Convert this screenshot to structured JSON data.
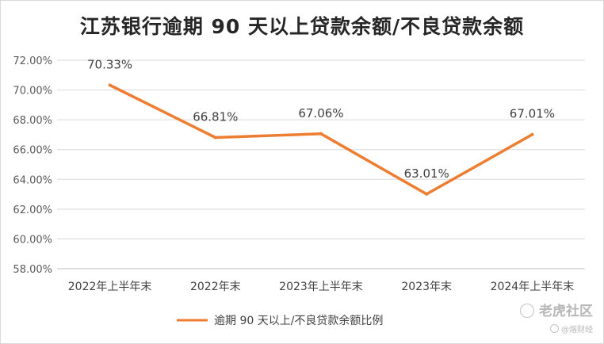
{
  "chart_data": {
    "type": "line",
    "title": "江苏银行逾期 90 天以上贷款余额/不良贷款余额",
    "categories": [
      "2022年上半年末",
      "2022年末",
      "2023年上半年末",
      "2023年末",
      "2024年上半年末"
    ],
    "series": [
      {
        "name": "逾期 90 天以上/不良贷款余额比例",
        "values": [
          70.33,
          66.81,
          67.06,
          63.01,
          67.01
        ],
        "labels": [
          "70.33%",
          "66.81%",
          "67.06%",
          "63.01%",
          "67.01%"
        ],
        "color": "#ED7D31"
      }
    ],
    "y_ticks": [
      "58.00%",
      "60.00%",
      "62.00%",
      "64.00%",
      "66.00%",
      "68.00%",
      "70.00%",
      "72.00%"
    ],
    "ylim": [
      58,
      72
    ],
    "grid": true,
    "legend_position": "bottom"
  },
  "watermark": {
    "brand": "老虎社区",
    "sub": "熔财经"
  }
}
